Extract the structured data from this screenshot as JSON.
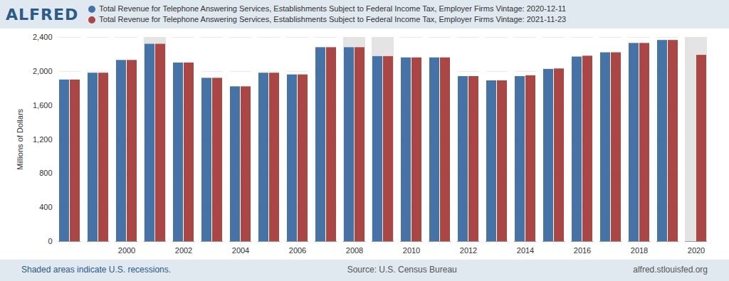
{
  "chart_data": {
    "type": "bar",
    "logo": "ALFRED",
    "y_label": "Millions of Dollars",
    "x": [
      1998,
      1999,
      2000,
      2001,
      2002,
      2003,
      2004,
      2005,
      2006,
      2007,
      2008,
      2009,
      2010,
      2011,
      2012,
      2013,
      2014,
      2015,
      2016,
      2017,
      2018,
      2019,
      2020
    ],
    "xticks": [
      2000,
      2002,
      2004,
      2006,
      2008,
      2010,
      2012,
      2014,
      2016,
      2018,
      2020
    ],
    "series": [
      {
        "name": "Total Revenue for Telephone Answering Services, Establishments Subject to Federal Income Tax, Employer Firms Vintage: 2020-12-11",
        "color": "#4572a7",
        "values": [
          1900,
          1980,
          2130,
          2320,
          2100,
          1920,
          1820,
          1980,
          1960,
          2280,
          2280,
          2175,
          2160,
          2160,
          1940,
          1890,
          1940,
          2025,
          2170,
          2220,
          2330,
          2365,
          null
        ]
      },
      {
        "name": "Total Revenue for Telephone Answering Services, Establishments Subject to Federal Income Tax, Employer Firms Vintage: 2021-11-23",
        "color": "#aa4643",
        "values": [
          1900,
          1980,
          2130,
          2320,
          2100,
          1920,
          1820,
          1980,
          1960,
          2280,
          2280,
          2175,
          2160,
          2160,
          1940,
          1890,
          1950,
          2030,
          2180,
          2220,
          2330,
          2365,
          2190
        ]
      }
    ],
    "recession_years": [
      2001,
      2008,
      2009,
      2020
    ],
    "ylim": [
      0,
      2400
    ],
    "yticks": [
      0,
      400,
      800,
      {
        "value": 1200,
        "label": "1,200"
      },
      {
        "value": 1600,
        "label": "1,600"
      },
      {
        "value": 2000,
        "label": "2,000"
      },
      {
        "value": 2400,
        "label": "2,400"
      }
    ],
    "grid": true,
    "legend": "top",
    "caption": "Shaded areas indicate U.S. recessions.",
    "source": "Source: U.S. Census Bureau",
    "url": "alfred.stlouisfed.org"
  }
}
